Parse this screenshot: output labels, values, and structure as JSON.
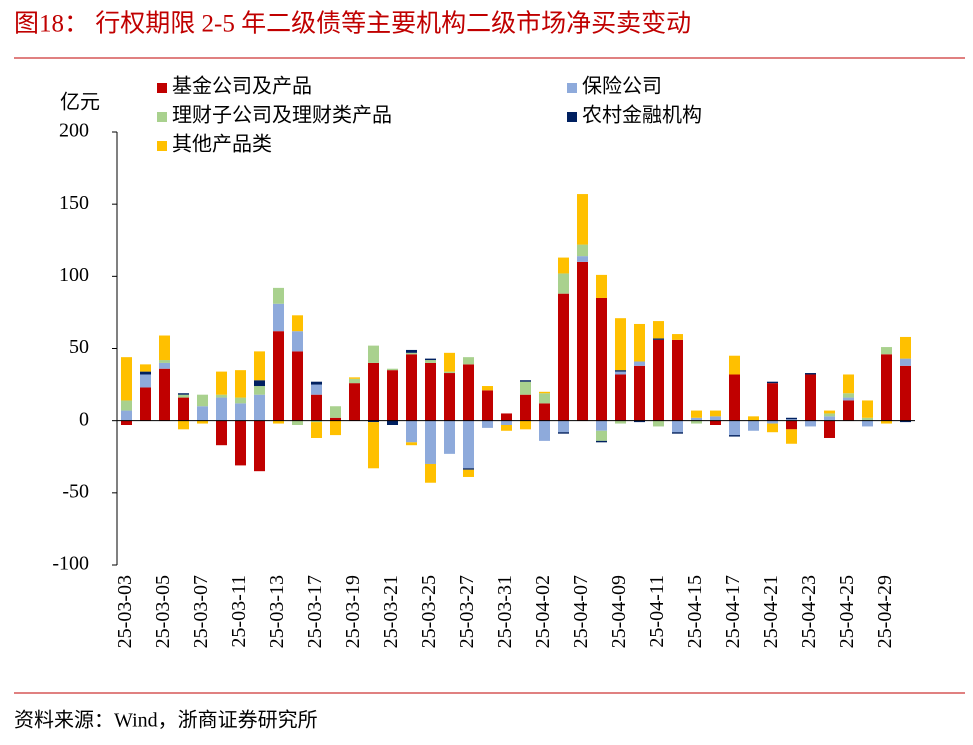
{
  "chart_data": {
    "type": "bar",
    "stacked": true,
    "title": "图18：  行权期限 2-5 年二级债等主要机构二级市场净买卖变动",
    "source": "资料来源：Wind，浙商证券研究所",
    "y_label": "亿元",
    "categories": [
      "25-03-03",
      null,
      "25-03-05",
      null,
      "25-03-07",
      null,
      "25-03-11",
      null,
      "25-03-13",
      null,
      "25-03-17",
      null,
      "25-03-19",
      null,
      "25-03-21",
      null,
      "25-03-25",
      null,
      "25-03-27",
      null,
      "25-03-31",
      null,
      "25-04-02",
      null,
      "25-04-07",
      null,
      "25-04-09",
      null,
      "25-04-11",
      null,
      "25-04-15",
      null,
      "25-04-17",
      null,
      "25-04-21",
      null,
      "25-04-23",
      null,
      "25-04-25",
      null,
      "25-04-29",
      null
    ],
    "series": [
      {
        "name": "基金公司及产品",
        "color": "#c00000",
        "values": [
          -3,
          23,
          36,
          16,
          0,
          -17,
          -31,
          -35,
          62,
          48,
          18,
          2,
          26,
          40,
          35,
          46,
          40,
          33,
          39,
          21,
          5,
          18,
          12,
          88,
          110,
          85,
          32,
          38,
          56,
          56,
          0,
          -3,
          32,
          0,
          26,
          -6,
          32,
          -12,
          14,
          0,
          46,
          38
        ]
      },
      {
        "name": "保险公司",
        "color": "#8eaadb",
        "values": [
          7,
          9,
          4,
          0,
          10,
          16,
          12,
          18,
          19,
          14,
          7,
          0,
          0,
          0,
          0,
          -15,
          -30,
          -23,
          -33,
          -5,
          -3,
          0,
          -14,
          -8,
          4,
          -7,
          2,
          3,
          0,
          -8,
          2,
          3,
          -10,
          -7,
          -2,
          1,
          -4,
          3,
          2,
          -4,
          0,
          5
        ]
      },
      {
        "name": "理财子公司及理财类产品",
        "color": "#a9d18e",
        "values": [
          7,
          0,
          2,
          2,
          8,
          2,
          4,
          6,
          11,
          -3,
          -1,
          8,
          3,
          12,
          1,
          1,
          2,
          1,
          5,
          0,
          0,
          9,
          7,
          14,
          8,
          -7,
          -2,
          0,
          -4,
          0,
          -2,
          0,
          0,
          0,
          0,
          0,
          0,
          2,
          3,
          2,
          5,
          0
        ]
      },
      {
        "name": "农村金融机构",
        "color": "#002060",
        "values": [
          0,
          2,
          0,
          1,
          0,
          0,
          0,
          4,
          0,
          0,
          2,
          0,
          0,
          -1,
          -3,
          2,
          1,
          0,
          -1,
          0,
          0,
          1,
          0,
          -1,
          0,
          -1,
          1,
          -1,
          1,
          -1,
          0,
          0,
          -1,
          0,
          1,
          1,
          1,
          0,
          0,
          0,
          0,
          -1
        ]
      },
      {
        "name": "其他产品类",
        "color": "#ffc000",
        "values": [
          30,
          5,
          17,
          -6,
          -2,
          16,
          19,
          20,
          -2,
          11,
          -11,
          -10,
          1,
          -32,
          0,
          -2,
          -13,
          13,
          -5,
          3,
          -4,
          -6,
          1,
          11,
          35,
          16,
          36,
          26,
          12,
          4,
          5,
          4,
          13,
          3,
          -6,
          -10,
          0,
          2,
          13,
          12,
          -2,
          15
        ]
      }
    ],
    "ylim": [
      -100,
      200
    ],
    "yticks": [
      -100,
      -50,
      0,
      50,
      100,
      150,
      200
    ],
    "grid": false
  }
}
